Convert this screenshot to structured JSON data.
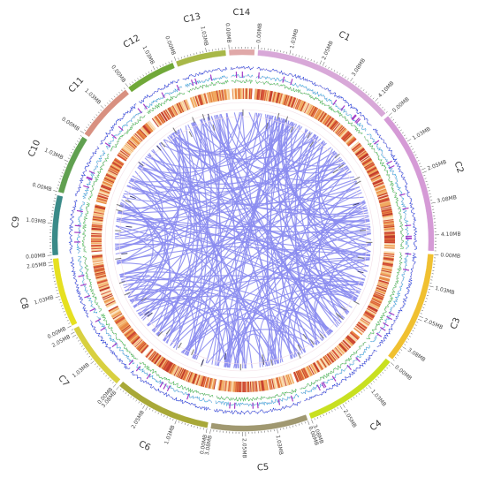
{
  "chart_data": {
    "type": "circos",
    "chromosomes": [
      {
        "name": "C1",
        "length": 4.6,
        "color": "#d8a8d8",
        "ticks": [
          "0.00MB",
          "1.03MB",
          "2.05MB",
          "3.08MB",
          "4.10MB"
        ]
      },
      {
        "name": "C2",
        "length": 4.6,
        "color": "#d59ad6",
        "ticks": [
          "0.00MB",
          "1.03MB",
          "2.05MB",
          "3.08MB",
          "4.10MB"
        ]
      },
      {
        "name": "C3",
        "length": 3.6,
        "color": "#f0c030",
        "ticks": [
          "0.00MB",
          "1.03MB",
          "2.05MB",
          "3.08MB"
        ]
      },
      {
        "name": "C4",
        "length": 3.1,
        "color": "#c8e020",
        "ticks": [
          "0.00MB",
          "1.03MB",
          "2.05MB",
          "3.08MB"
        ]
      },
      {
        "name": "C5",
        "length": 3.1,
        "color": "#a09870",
        "ticks": [
          "0.00MB",
          "1.03MB",
          "2.05MB",
          "3.08MB"
        ]
      },
      {
        "name": "C6",
        "length": 3.1,
        "color": "#a8a838",
        "ticks": [
          "0.00MB",
          "1.03MB",
          "2.05MB",
          "3.08MB"
        ]
      },
      {
        "name": "C7",
        "length": 2.2,
        "color": "#d8d040",
        "ticks": [
          "0.00MB",
          "1.03MB",
          "2.05MB"
        ]
      },
      {
        "name": "C8",
        "length": 2.2,
        "color": "#e6e020",
        "ticks": [
          "0.00MB",
          "1.03MB",
          "2.05MB"
        ]
      },
      {
        "name": "C9",
        "length": 1.9,
        "color": "#3a8a88",
        "ticks": [
          "0.00MB",
          "1.03MB"
        ]
      },
      {
        "name": "C10",
        "length": 1.9,
        "color": "#60a050",
        "ticks": [
          "0.00MB",
          "1.03MB"
        ]
      },
      {
        "name": "C11",
        "length": 1.9,
        "color": "#d89080",
        "ticks": [
          "0.00MB",
          "1.03MB"
        ]
      },
      {
        "name": "C12",
        "length": 1.6,
        "color": "#70a838",
        "ticks": [
          "0.00MB",
          "1.03MB"
        ]
      },
      {
        "name": "C13",
        "length": 1.6,
        "color": "#a8b848",
        "ticks": [
          "0.00MB",
          "1.03MB"
        ]
      },
      {
        "name": "C14",
        "length": 0.8,
        "color": "#e0a8a8",
        "ticks": [
          "0.00MB"
        ]
      }
    ],
    "link_color": "#8b8cf0",
    "heatmap_colors": [
      "#fbe3c3",
      "#f6c98f",
      "#f0a860",
      "#e88a45",
      "#d8563a",
      "#c23c2c"
    ],
    "track_colors": [
      "#1a38d8",
      "#2ea0d8",
      "#3bb84a",
      "#a43dc8"
    ]
  }
}
